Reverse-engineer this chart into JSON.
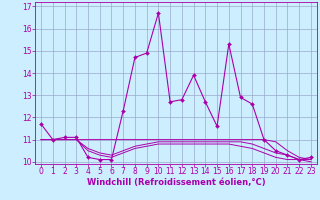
{
  "title": "",
  "xlabel": "Windchill (Refroidissement éolien,°C)",
  "ylabel": "",
  "bg_color": "#cceeff",
  "line_color": "#aa00aa",
  "grid_color": "#99aacc",
  "x": [
    0,
    1,
    2,
    3,
    4,
    5,
    6,
    7,
    8,
    9,
    10,
    11,
    12,
    13,
    14,
    15,
    16,
    17,
    18,
    19,
    20,
    21,
    22,
    23
  ],
  "y_main": [
    11.7,
    11.0,
    11.1,
    11.1,
    10.2,
    10.1,
    10.1,
    12.3,
    14.7,
    14.9,
    16.7,
    12.7,
    12.8,
    13.9,
    12.7,
    11.6,
    15.3,
    12.9,
    12.6,
    11.0,
    10.5,
    10.3,
    10.1,
    10.2
  ],
  "y_flat1": [
    11.0,
    11.0,
    11.0,
    11.0,
    11.0,
    11.0,
    11.0,
    11.0,
    11.0,
    11.0,
    11.0,
    11.0,
    11.0,
    11.0,
    11.0,
    11.0,
    11.0,
    11.0,
    11.0,
    11.0,
    10.9,
    10.5,
    10.2,
    10.1
  ],
  "y_flat2": [
    11.0,
    11.0,
    11.0,
    11.0,
    10.6,
    10.4,
    10.3,
    10.5,
    10.7,
    10.8,
    10.9,
    10.9,
    10.9,
    10.9,
    10.9,
    10.9,
    10.9,
    10.9,
    10.8,
    10.6,
    10.4,
    10.3,
    10.1,
    10.1
  ],
  "y_flat3": [
    11.0,
    11.0,
    11.0,
    11.0,
    10.5,
    10.3,
    10.2,
    10.4,
    10.6,
    10.7,
    10.8,
    10.8,
    10.8,
    10.8,
    10.8,
    10.8,
    10.8,
    10.7,
    10.6,
    10.4,
    10.2,
    10.1,
    10.1,
    10.0
  ],
  "ylim": [
    9.9,
    17.2
  ],
  "xlim": [
    -0.5,
    23.5
  ],
  "yticks": [
    10,
    11,
    12,
    13,
    14,
    15,
    16,
    17
  ],
  "xticks": [
    0,
    1,
    2,
    3,
    4,
    5,
    6,
    7,
    8,
    9,
    10,
    11,
    12,
    13,
    14,
    15,
    16,
    17,
    18,
    19,
    20,
    21,
    22,
    23
  ],
  "fontsize_label": 6,
  "fontsize_tick": 5.5
}
